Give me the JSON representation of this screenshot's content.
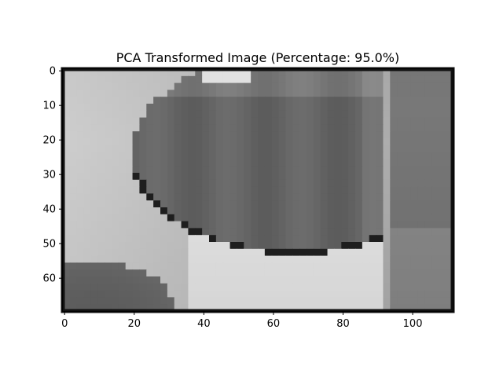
{
  "chart_data": {
    "type": "heatmap",
    "title": "PCA Transformed Image (Percentage: 95.0%)",
    "colormap": "gray",
    "image_width": 112,
    "image_height": 70,
    "xlim": [
      -0.5,
      111.5
    ],
    "ylim": [
      69.5,
      -0.5
    ],
    "x_ticks": [
      0,
      20,
      40,
      60,
      80,
      100
    ],
    "y_ticks": [
      0,
      10,
      20,
      30,
      40,
      50,
      60
    ],
    "grid": false,
    "legend": "none",
    "colors": {
      "frame": "#111111",
      "background_light": "#c8c8c8",
      "lens_dark": "#666666",
      "lens_edge": "#1a1a1a",
      "lower_blob": "#5a5a5a",
      "bright_band": "#e6e6e6"
    }
  }
}
